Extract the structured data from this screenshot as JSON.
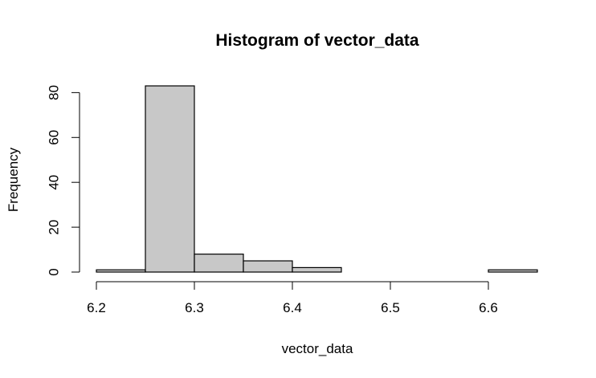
{
  "chart_data": {
    "type": "bar",
    "title": "Histogram of vector_data",
    "xlabel": "vector_data",
    "ylabel": "Frequency",
    "bin_width": 0.05,
    "bins": [
      {
        "start": 6.2,
        "end": 6.25,
        "count": 1
      },
      {
        "start": 6.25,
        "end": 6.3,
        "count": 83
      },
      {
        "start": 6.3,
        "end": 6.35,
        "count": 8
      },
      {
        "start": 6.35,
        "end": 6.4,
        "count": 5
      },
      {
        "start": 6.4,
        "end": 6.45,
        "count": 2
      },
      {
        "start": 6.45,
        "end": 6.5,
        "count": 0
      },
      {
        "start": 6.5,
        "end": 6.55,
        "count": 0
      },
      {
        "start": 6.55,
        "end": 6.6,
        "count": 0
      },
      {
        "start": 6.6,
        "end": 6.65,
        "count": 1
      }
    ],
    "xlim": [
      6.2,
      6.65
    ],
    "ylim": [
      0,
      83
    ],
    "x_ticks": [
      "6.2",
      "6.3",
      "6.4",
      "6.5",
      "6.6"
    ],
    "y_ticks": [
      "0",
      "20",
      "40",
      "60",
      "80"
    ],
    "grid": false,
    "bar_fill": "#c8c8c8",
    "bar_stroke": "#000000"
  }
}
